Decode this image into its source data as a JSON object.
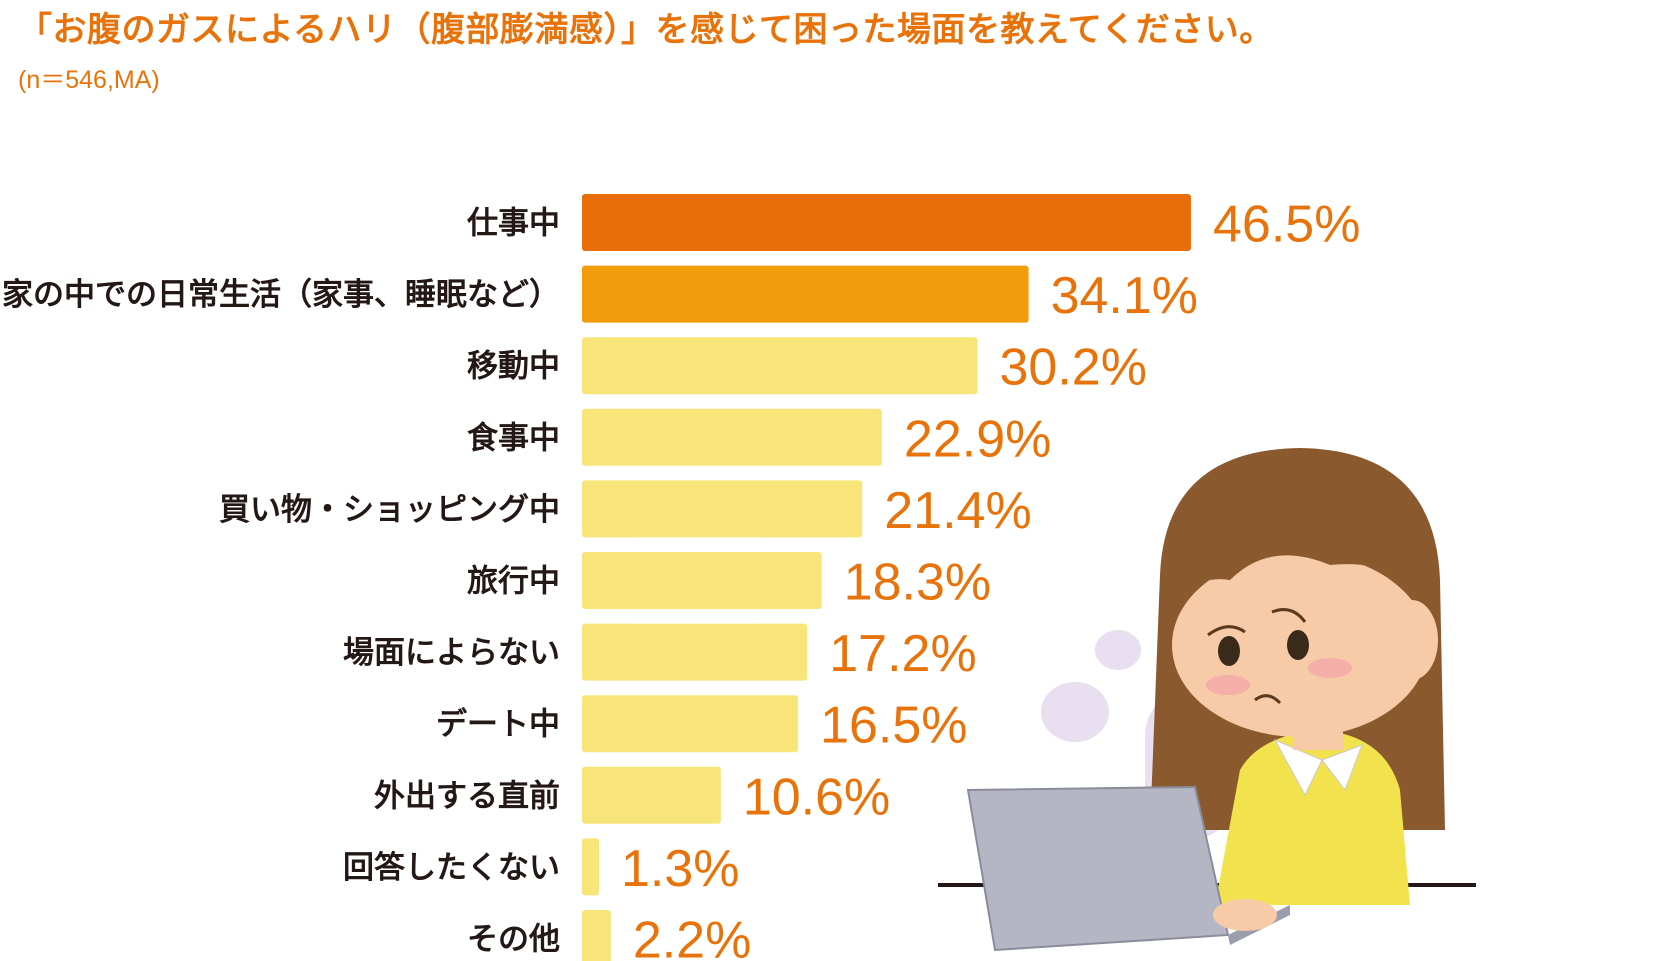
{
  "title": "「お腹のガスによるハリ（腹部膨満感）」を感じて困った場面を教えてください。",
  "subtitle": "(n＝546,MA)",
  "colors": {
    "top1": "#e86e0a",
    "top2": "#f29c0c",
    "rest": "#f7e57a",
    "value_text": "#e8730a",
    "label_text": "#231815"
  },
  "chart_data": {
    "type": "bar",
    "orientation": "horizontal",
    "categories": [
      "仕事中",
      "家の中での日常生活（家事、睡眠など）",
      "移動中",
      "食事中",
      "買い物・ショッピング中",
      "旅行中",
      "場面によらない",
      "デート中",
      "外出する直前",
      "回答したくない",
      "その他"
    ],
    "values": [
      46.5,
      34.1,
      30.2,
      22.9,
      21.4,
      18.3,
      17.2,
      16.5,
      10.6,
      1.3,
      2.2
    ],
    "value_labels": [
      "46.5%",
      "34.1%",
      "30.2%",
      "22.9%",
      "21.4%",
      "18.3%",
      "17.2%",
      "16.5%",
      "10.6%",
      "1.3%",
      "2.2%"
    ],
    "unit": "%",
    "xlim": [
      0,
      50
    ],
    "grid": false,
    "legend": "none"
  },
  "illustration": {
    "name": "worried-woman-at-laptop"
  }
}
